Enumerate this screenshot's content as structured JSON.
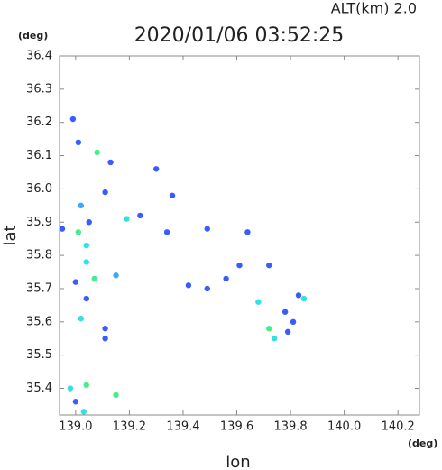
{
  "chart_data": {
    "type": "scatter",
    "title": "2020/01/06 03:52:25",
    "annotation": "ALT(km)  2.0",
    "y_unit": "(deg)",
    "x_unit": "(deg)",
    "xlabel": "lon",
    "ylabel": "lat",
    "xlim": [
      138.94,
      140.28
    ],
    "ylim": [
      35.32,
      36.4
    ],
    "xticks": [
      {
        "value": 139,
        "label": "139.0"
      },
      139.2,
      139.4,
      139.6,
      139.8,
      {
        "value": 140,
        "label": "140.0"
      },
      140.2
    ],
    "yticks": [
      35.4,
      35.5,
      35.6,
      35.7,
      35.8,
      35.9,
      {
        "value": 36,
        "label": "36.0"
      },
      36.1,
      36.2,
      36.3,
      36.4
    ],
    "series": [
      {
        "color": "#3a5cff",
        "x": [
          138.99,
          139.01,
          139.13,
          139.11,
          139.05,
          138.95,
          139.0,
          139.04,
          139.11,
          139.11,
          139.0,
          139.24,
          139.36,
          139.3,
          139.34,
          139.49,
          139.64,
          139.61,
          139.72,
          139.49,
          139.79,
          139.81,
          139.78,
          139.83,
          139.42,
          139.56
        ],
        "y": [
          36.21,
          36.14,
          36.08,
          35.99,
          35.9,
          35.88,
          35.72,
          35.67,
          35.58,
          35.55,
          35.36,
          35.92,
          35.98,
          36.06,
          35.87,
          35.88,
          35.87,
          35.77,
          35.77,
          35.7,
          35.57,
          35.6,
          35.63,
          35.68,
          35.71,
          35.73
        ]
      },
      {
        "color": "#3aa8ff",
        "x": [
          139.02,
          139.15
        ],
        "y": [
          35.95,
          35.74
        ]
      },
      {
        "color": "#33e0e8",
        "x": [
          139.04,
          139.04,
          139.02,
          138.98,
          139.03,
          139.68,
          139.74,
          139.85,
          139.19
        ],
        "y": [
          35.83,
          35.78,
          35.61,
          35.4,
          35.33,
          35.66,
          35.55,
          35.67,
          35.91
        ]
      },
      {
        "color": "#44ee88",
        "x": [
          139.08,
          139.01,
          139.04,
          139.15,
          139.72,
          139.07
        ],
        "y": [
          36.11,
          35.87,
          35.41,
          35.38,
          35.58,
          35.73
        ]
      }
    ]
  }
}
